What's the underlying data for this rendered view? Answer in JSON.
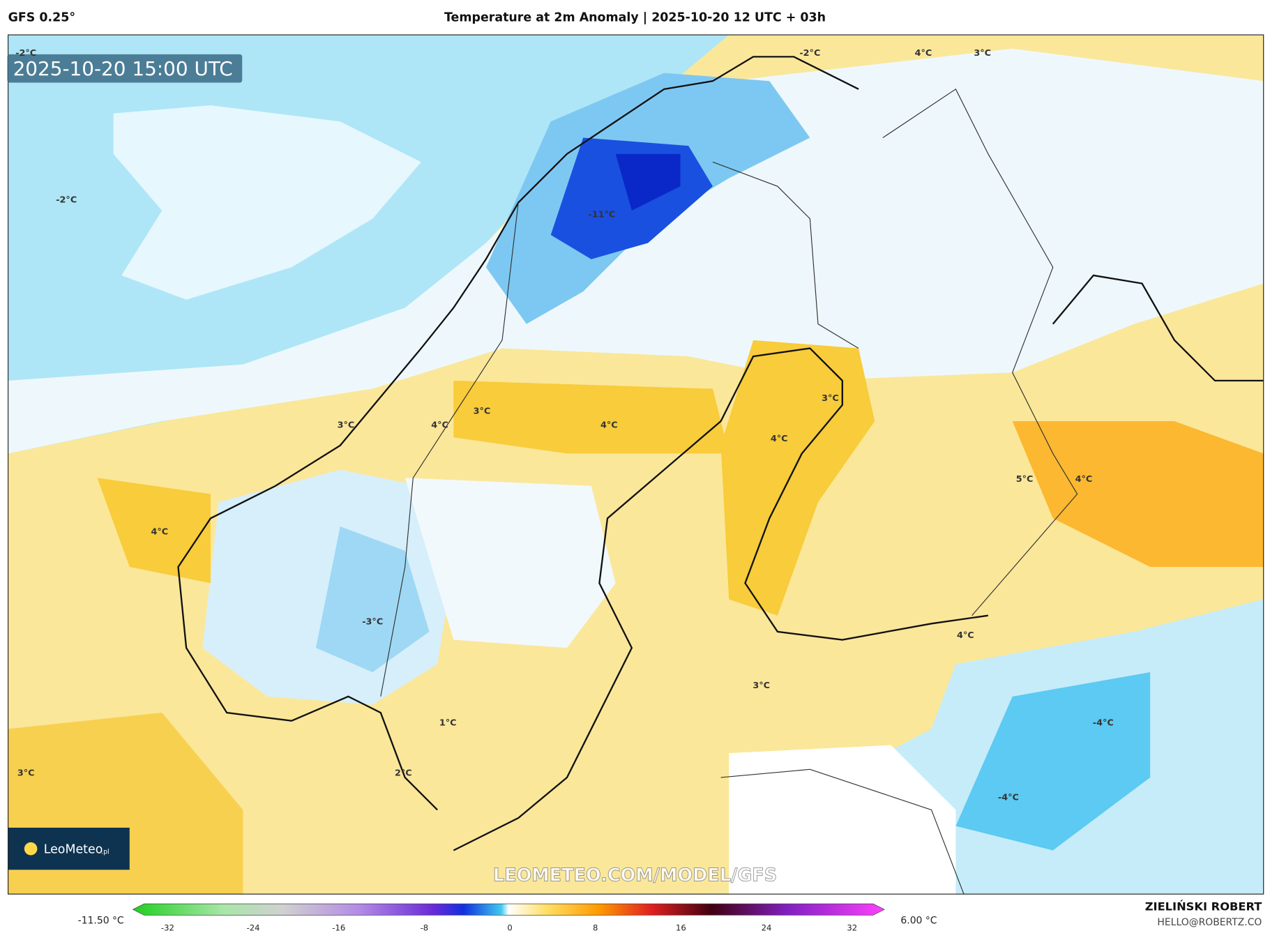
{
  "header": {
    "model": "GFS 0.25°",
    "title": "Temperature at 2m Anomaly | 2025-10-20 12 UTC + 03h"
  },
  "map": {
    "timestamp": "2025-10-20 15:00 UTC",
    "watermark": "LEOMETEO.COM/MODEL/GFS",
    "labels": [
      "-2°C",
      "-2°C",
      "-2°C",
      "4°C",
      "3°C",
      "-11°C",
      "3°C",
      "4°C",
      "3°C",
      "4°C",
      "3°C",
      "4°C",
      "5°C",
      "4°C",
      "4°C",
      "-3°C",
      "4°C",
      "3°C",
      "1°C",
      "-4°C",
      "3°C",
      "2°C",
      "-4°C"
    ]
  },
  "logo": {
    "name": "LeoMeteo",
    "suffix": ".pl"
  },
  "colorbar": {
    "min_label": "-11.50 °C",
    "max_label": "6.00 °C",
    "ticks": [
      -32,
      -24,
      -16,
      -8,
      0,
      8,
      16,
      24,
      32
    ]
  },
  "author": {
    "name": "ZIELIŃSKI ROBERT",
    "email": "HELLO@ROBERTZ.CO"
  }
}
